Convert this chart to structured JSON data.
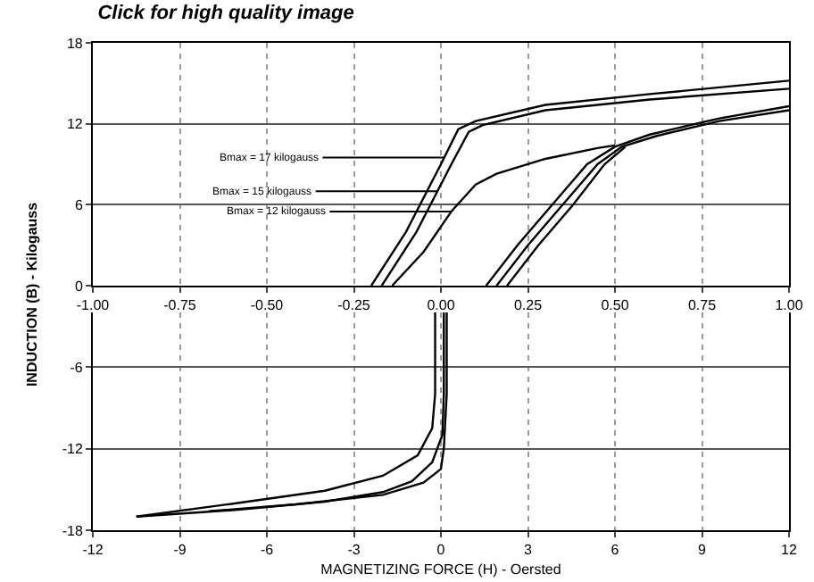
{
  "chart_data": [
    {
      "type": "line",
      "title": "Click for high quality image",
      "xlim": [
        -1,
        1
      ],
      "ylim": [
        0,
        18
      ],
      "xticks": [
        {
          "value": -1,
          "label": "-1.00"
        },
        {
          "value": -0.75,
          "label": "-0.75"
        },
        {
          "value": -0.5,
          "label": "-0.50"
        },
        {
          "value": -0.25,
          "label": "-0.25"
        },
        {
          "value": 0,
          "label": "0.00"
        },
        {
          "value": 0.25,
          "label": "0.25"
        },
        {
          "value": 0.5,
          "label": "0.50"
        },
        {
          "value": 0.75,
          "label": "0.75"
        },
        {
          "value": 1,
          "label": "1.00"
        }
      ],
      "yticks": [
        0,
        6,
        12,
        18
      ],
      "grid": true,
      "line_style": "solid",
      "series": [
        {
          "color": "#000000",
          "x": [
            -0.2,
            -0.1,
            0.0,
            0.05,
            0.1,
            0.3,
            0.6,
            1.0
          ],
          "values": [
            0,
            4,
            9,
            11.6,
            12.2,
            13.4,
            14.2,
            15.2
          ]
        },
        {
          "color": "#000000",
          "x": [
            -0.17,
            -0.07,
            0.03,
            0.08,
            0.12,
            0.3,
            0.6,
            1.0
          ],
          "values": [
            0,
            4,
            9,
            11.4,
            11.9,
            13.0,
            13.8,
            14.6
          ]
        },
        {
          "color": "#000000",
          "x": [
            -0.14,
            -0.05,
            0.03,
            0.1,
            0.16,
            0.3,
            0.45,
            0.5
          ],
          "values": [
            0,
            2.5,
            5.5,
            7.5,
            8.3,
            9.4,
            10.2,
            10.4
          ]
        },
        {
          "color": "#000000",
          "x": [
            0.13,
            0.22,
            0.32,
            0.42,
            0.5,
            0.6,
            0.8,
            1.0
          ],
          "values": [
            0,
            3,
            6,
            9,
            10.3,
            11.2,
            12.4,
            13.3
          ]
        },
        {
          "color": "#000000",
          "x": [
            0.16,
            0.25,
            0.35,
            0.45,
            0.52,
            0.62,
            0.8,
            1.0
          ],
          "values": [
            0,
            3,
            6,
            9,
            10.3,
            11.1,
            12.2,
            13.0
          ]
        },
        {
          "color": "#000000",
          "x": [
            0.19,
            0.28,
            0.38,
            0.47,
            0.53
          ],
          "values": [
            0,
            3,
            6,
            9,
            10.3
          ]
        }
      ],
      "annotations": [
        {
          "text": "Bmax = 17 kilogauss",
          "x": 0.01,
          "y": 9.5
        },
        {
          "text": "Bmax = 15 kilogauss",
          "x": -0.01,
          "y": 7.0
        },
        {
          "text": "Bmax = 12 kilogauss",
          "x": 0.03,
          "y": 5.5
        }
      ]
    },
    {
      "type": "line",
      "xlabel": "MAGNETIZING FORCE (H) - Oersted",
      "ylabel": "INDUCTION (B) - Kilogauss",
      "xlim": [
        -12,
        12
      ],
      "ylim": [
        -18,
        -2
      ],
      "xticks": [
        -12,
        -9,
        -6,
        -3,
        0,
        3,
        6,
        9,
        12
      ],
      "yticks": [
        -18,
        -12,
        -6
      ],
      "grid": true,
      "line_style": "solid",
      "series": [
        {
          "color": "#000000",
          "x": [
            0.1,
            0.1,
            0.05,
            -0.3,
            -1,
            -2,
            -4,
            -7,
            -10.5
          ],
          "values": [
            -2,
            -8,
            -11,
            -13,
            -14.4,
            -15.2,
            -15.9,
            -16.5,
            -17
          ]
        },
        {
          "color": "#000000",
          "x": [
            0.2,
            0.2,
            0.1,
            0,
            -0.6,
            -2,
            -5,
            -8
          ],
          "values": [
            -2,
            -8,
            -12,
            -13.5,
            -14.5,
            -15.4,
            -16.1,
            -16.6
          ]
        },
        {
          "color": "#000000",
          "x": [
            -0.2,
            -0.2,
            -0.3,
            -0.8,
            -2,
            -4,
            -7,
            -10.5
          ],
          "values": [
            -2,
            -8,
            -10.5,
            -12.5,
            -14,
            -15.1,
            -16,
            -17
          ]
        }
      ]
    }
  ]
}
